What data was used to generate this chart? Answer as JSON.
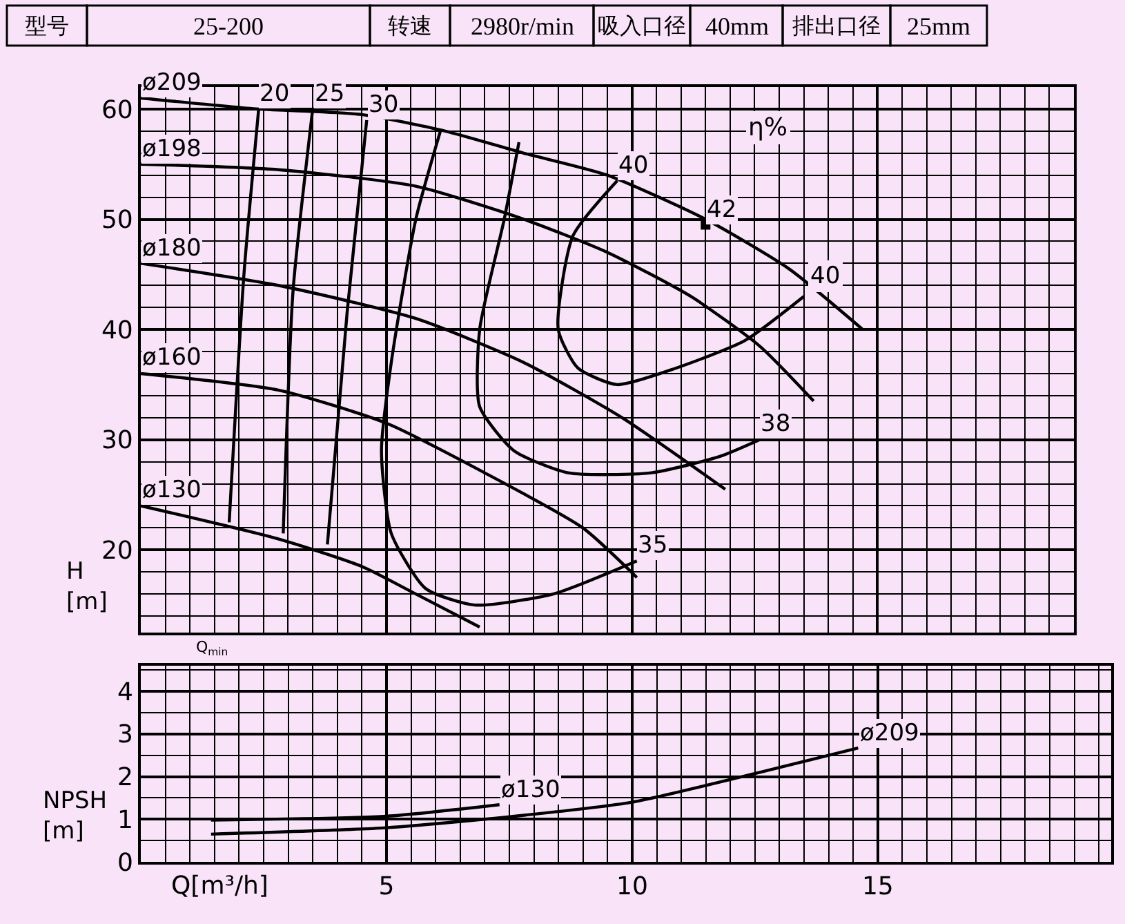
{
  "chart_data": [
    {
      "type": "other",
      "annotations": [
        "型号",
        "25-200",
        "转速",
        "2980r/min",
        "吸入口径",
        "40mm",
        "排出口径",
        "25mm"
      ]
    },
    {
      "type": "line",
      "xlim": [
        0,
        19
      ],
      "xticks": [
        0,
        5,
        10,
        15
      ],
      "tick_labels": "y",
      "ylim": [
        12.5,
        62
      ],
      "yticks": [
        20,
        30,
        40,
        50,
        60
      ],
      "ylabel": "H\n[m]",
      "grid": true,
      "line_style": "solid",
      "annotations": [
        "40",
        "η%",
        "Q$_{min}$"
      ],
      "series": [
        {
          "name": "ø209",
          "color": "#000000",
          "x": [
            0,
            2.4,
            4.5,
            6.2,
            7.8,
            9.5,
            11.5,
            13.2,
            14.7
          ],
          "values": [
            61,
            60,
            59.5,
            58,
            56,
            54,
            50,
            45.5,
            40
          ]
        },
        {
          "name": "ø198",
          "color": "#000000",
          "x": [
            0,
            2.8,
            5.6,
            7.8,
            9.5,
            11.2,
            12.6,
            13.7
          ],
          "values": [
            55,
            54.5,
            53,
            50,
            47,
            43,
            38.5,
            33.5
          ]
        },
        {
          "name": "ø180",
          "color": "#000000",
          "x": [
            0,
            2.8,
            5.6,
            7.8,
            9.8,
            11.9
          ],
          "values": [
            46,
            44,
            41,
            37,
            32,
            25.5
          ]
        },
        {
          "name": "ø160",
          "color": "#000000",
          "x": [
            0,
            2.8,
            5,
            7,
            9,
            10.1
          ],
          "values": [
            36,
            34.5,
            31.5,
            27,
            22,
            17.5
          ]
        },
        {
          "name": "ø130",
          "color": "#000000",
          "x": [
            0,
            2.8,
            4.5,
            5.6,
            6.9
          ],
          "values": [
            24,
            21,
            18.5,
            16,
            13
          ]
        },
        {
          "name": "20",
          "color": "#000000",
          "x": [
            2.4,
            2.1,
            1.8
          ],
          "values": [
            60,
            45,
            22.5
          ]
        },
        {
          "name": "25",
          "color": "#000000",
          "x": [
            3.5,
            3.1,
            2.9
          ],
          "values": [
            60,
            43.5,
            21.5
          ]
        },
        {
          "name": "30",
          "color": "#000000",
          "x": [
            4.6,
            4.2,
            3.8
          ],
          "values": [
            59,
            41.5,
            20.5
          ]
        },
        {
          "name": "35",
          "color": "#000000",
          "x": [
            10.1,
            8.4,
            6.8,
            5.8,
            5.1,
            4.9,
            5.1,
            5.6,
            6.1
          ],
          "values": [
            19,
            16,
            15,
            16.5,
            21.5,
            29,
            37,
            50,
            58
          ]
        },
        {
          "name": "38",
          "color": "#000000",
          "x": [
            12.6,
            11.8,
            10.4,
            8.7,
            7.6,
            6.9,
            6.9,
            7.4,
            7.7
          ],
          "values": [
            30,
            28.5,
            27,
            27,
            29,
            33,
            40,
            50,
            57
          ]
        },
        {
          "name": "40",
          "color": "#000000",
          "x": [
            9.7,
            8.8,
            8.5,
            8.9,
            9.7,
            10.9,
            12.3,
            13.5
          ],
          "values": [
            53.5,
            48.5,
            40,
            36.5,
            35,
            36.5,
            39,
            43
          ]
        },
        {
          "name": "42",
          "type": "scatter",
          "marker": "square",
          "color": "#000000",
          "x": [
            11.5
          ],
          "values": [
            49.5
          ]
        }
      ]
    },
    {
      "type": "line",
      "xlim": [
        0,
        19.75
      ],
      "xticks": [
        5,
        10,
        15
      ],
      "ylim": [
        0,
        4.6
      ],
      "yticks": [
        0,
        1,
        2,
        3,
        4
      ],
      "xlabel": "Q[m³/h]",
      "ylabel": "NPSH\n[m]",
      "grid": true,
      "marker": "none",
      "line_style": "solid",
      "series": [
        {
          "name": "ø209",
          "color": "#000000",
          "x": [
            14.6,
            12.6,
            10,
            7.6,
            5,
            1.43
          ],
          "values": [
            2.67,
            2.1,
            1.4,
            1.07,
            0.8,
            0.65
          ]
        },
        {
          "name": "ø130",
          "color": "#000000",
          "x": [
            7.3,
            5,
            1.43
          ],
          "values": [
            1.34,
            1.07,
            0.98
          ]
        }
      ]
    }
  ]
}
